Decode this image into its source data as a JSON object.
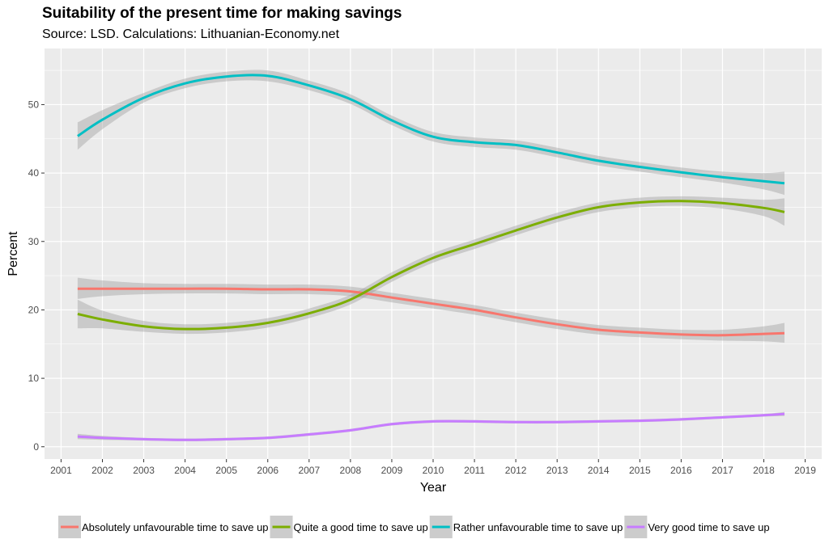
{
  "title": "Suitability of the present time for making savings",
  "subtitle": "Source: LSD. Calculations: Lithuanian-Economy.net",
  "chart_data": {
    "type": "line",
    "xlabel": "Year",
    "ylabel": "Percent",
    "xlim": [
      2000.6,
      2019.4
    ],
    "ylim": [
      -1.8,
      58.2
    ],
    "x_ticks": [
      2001,
      2002,
      2003,
      2004,
      2005,
      2006,
      2007,
      2008,
      2009,
      2010,
      2011,
      2012,
      2013,
      2014,
      2015,
      2016,
      2017,
      2018,
      2019
    ],
    "y_ticks": [
      0,
      10,
      20,
      30,
      40,
      50
    ],
    "grid": true,
    "legend_position": "bottom",
    "series": [
      {
        "name": "Absolutely unfavourable time to save up",
        "color": "#F8766D",
        "points": [
          [
            2001.4,
            23.1
          ],
          [
            2002,
            23.1
          ],
          [
            2003,
            23.1
          ],
          [
            2004,
            23.1
          ],
          [
            2005,
            23.1
          ],
          [
            2006,
            23.0
          ],
          [
            2007,
            23.0
          ],
          [
            2008,
            22.7
          ],
          [
            2009,
            21.8
          ],
          [
            2010,
            20.9
          ],
          [
            2011,
            20.0
          ],
          [
            2012,
            18.9
          ],
          [
            2013,
            17.9
          ],
          [
            2014,
            17.1
          ],
          [
            2015,
            16.7
          ],
          [
            2016,
            16.4
          ],
          [
            2017,
            16.3
          ],
          [
            2018,
            16.5
          ],
          [
            2018.5,
            16.6
          ]
        ],
        "band": [
          [
            2001.4,
            21.6,
            24.7
          ],
          [
            2002,
            22.0,
            24.3
          ],
          [
            2003,
            22.3,
            23.9
          ],
          [
            2004,
            22.4,
            23.8
          ],
          [
            2005,
            22.4,
            23.8
          ],
          [
            2006,
            22.3,
            23.7
          ],
          [
            2007,
            22.3,
            23.7
          ],
          [
            2008,
            22.0,
            23.4
          ],
          [
            2009,
            21.1,
            22.5
          ],
          [
            2010,
            20.2,
            21.6
          ],
          [
            2011,
            19.3,
            20.7
          ],
          [
            2012,
            18.2,
            19.6
          ],
          [
            2013,
            17.2,
            18.6
          ],
          [
            2014,
            16.4,
            17.8
          ],
          [
            2015,
            16.0,
            17.4
          ],
          [
            2016,
            15.7,
            17.1
          ],
          [
            2017,
            15.5,
            17.1
          ],
          [
            2018,
            15.4,
            17.6
          ],
          [
            2018.5,
            15.2,
            18.1
          ]
        ]
      },
      {
        "name": "Quite a  good time to save up",
        "color": "#7CAE00",
        "points": [
          [
            2001.4,
            19.4
          ],
          [
            2002,
            18.6
          ],
          [
            2003,
            17.6
          ],
          [
            2004,
            17.2
          ],
          [
            2005,
            17.4
          ],
          [
            2006,
            18.1
          ],
          [
            2007,
            19.5
          ],
          [
            2008,
            21.5
          ],
          [
            2009,
            24.8
          ],
          [
            2010,
            27.6
          ],
          [
            2011,
            29.6
          ],
          [
            2012,
            31.6
          ],
          [
            2013,
            33.5
          ],
          [
            2014,
            35.0
          ],
          [
            2015,
            35.7
          ],
          [
            2016,
            35.9
          ],
          [
            2017,
            35.6
          ],
          [
            2018,
            34.9
          ],
          [
            2018.5,
            34.3
          ]
        ],
        "band": [
          [
            2001.4,
            17.3,
            21.5
          ],
          [
            2002,
            17.3,
            19.9
          ],
          [
            2003,
            16.8,
            18.4
          ],
          [
            2004,
            16.5,
            17.9
          ],
          [
            2005,
            16.7,
            18.1
          ],
          [
            2006,
            17.4,
            18.8
          ],
          [
            2007,
            18.8,
            20.2
          ],
          [
            2008,
            20.8,
            22.2
          ],
          [
            2009,
            24.1,
            25.5
          ],
          [
            2010,
            26.9,
            28.3
          ],
          [
            2011,
            28.9,
            30.3
          ],
          [
            2012,
            30.9,
            32.3
          ],
          [
            2013,
            32.8,
            34.2
          ],
          [
            2014,
            34.3,
            35.7
          ],
          [
            2015,
            35.0,
            36.4
          ],
          [
            2016,
            35.2,
            36.6
          ],
          [
            2017,
            34.8,
            36.4
          ],
          [
            2018,
            33.7,
            36.1
          ],
          [
            2018.5,
            32.3,
            36.3
          ]
        ]
      },
      {
        "name": "Rather unfavourable time to save up",
        "color": "#00BFC4",
        "points": [
          [
            2001.4,
            45.4
          ],
          [
            2002,
            47.8
          ],
          [
            2003,
            51.0
          ],
          [
            2004,
            53.1
          ],
          [
            2005,
            54.1
          ],
          [
            2006,
            54.2
          ],
          [
            2007,
            52.8
          ],
          [
            2008,
            50.8
          ],
          [
            2009,
            47.7
          ],
          [
            2010,
            45.3
          ],
          [
            2011,
            44.5
          ],
          [
            2012,
            44.1
          ],
          [
            2013,
            43.0
          ],
          [
            2014,
            41.8
          ],
          [
            2015,
            40.9
          ],
          [
            2016,
            40.1
          ],
          [
            2017,
            39.4
          ],
          [
            2018,
            38.8
          ],
          [
            2018.5,
            38.5
          ]
        ],
        "band": [
          [
            2001.4,
            43.4,
            47.4
          ],
          [
            2002,
            46.4,
            49.2
          ],
          [
            2003,
            50.3,
            51.7
          ],
          [
            2004,
            52.4,
            53.8
          ],
          [
            2005,
            53.4,
            54.8
          ],
          [
            2006,
            53.4,
            55.0
          ],
          [
            2007,
            52.1,
            53.5
          ],
          [
            2008,
            50.1,
            51.5
          ],
          [
            2009,
            47.0,
            48.4
          ],
          [
            2010,
            44.6,
            46.0
          ],
          [
            2011,
            43.8,
            45.2
          ],
          [
            2012,
            43.4,
            44.8
          ],
          [
            2013,
            42.3,
            43.7
          ],
          [
            2014,
            41.1,
            42.5
          ],
          [
            2015,
            40.2,
            41.6
          ],
          [
            2016,
            39.4,
            40.8
          ],
          [
            2017,
            38.6,
            40.2
          ],
          [
            2018,
            37.6,
            40.0
          ],
          [
            2018.5,
            36.8,
            40.2
          ]
        ]
      },
      {
        "name": "Very good time to save up",
        "color": "#C77CFF",
        "points": [
          [
            2001.4,
            1.5
          ],
          [
            2002,
            1.3
          ],
          [
            2003,
            1.1
          ],
          [
            2004,
            1.0
          ],
          [
            2005,
            1.1
          ],
          [
            2006,
            1.3
          ],
          [
            2007,
            1.8
          ],
          [
            2008,
            2.4
          ],
          [
            2009,
            3.3
          ],
          [
            2010,
            3.7
          ],
          [
            2011,
            3.7
          ],
          [
            2012,
            3.6
          ],
          [
            2013,
            3.6
          ],
          [
            2014,
            3.7
          ],
          [
            2015,
            3.8
          ],
          [
            2016,
            4.0
          ],
          [
            2017,
            4.3
          ],
          [
            2018,
            4.6
          ],
          [
            2018.5,
            4.8
          ]
        ],
        "band": [
          [
            2001.4,
            1.1,
            1.9
          ],
          [
            2002,
            1.0,
            1.6
          ],
          [
            2003,
            0.9,
            1.3
          ],
          [
            2004,
            0.8,
            1.2
          ],
          [
            2005,
            0.9,
            1.3
          ],
          [
            2006,
            1.1,
            1.5
          ],
          [
            2007,
            1.6,
            2.0
          ],
          [
            2008,
            2.2,
            2.6
          ],
          [
            2009,
            3.1,
            3.5
          ],
          [
            2010,
            3.5,
            3.9
          ],
          [
            2011,
            3.5,
            3.9
          ],
          [
            2012,
            3.4,
            3.8
          ],
          [
            2013,
            3.4,
            3.8
          ],
          [
            2014,
            3.5,
            3.9
          ],
          [
            2015,
            3.6,
            4.0
          ],
          [
            2016,
            3.8,
            4.2
          ],
          [
            2017,
            4.1,
            4.5
          ],
          [
            2018,
            4.4,
            4.8
          ],
          [
            2018.5,
            4.5,
            5.1
          ]
        ]
      }
    ]
  }
}
